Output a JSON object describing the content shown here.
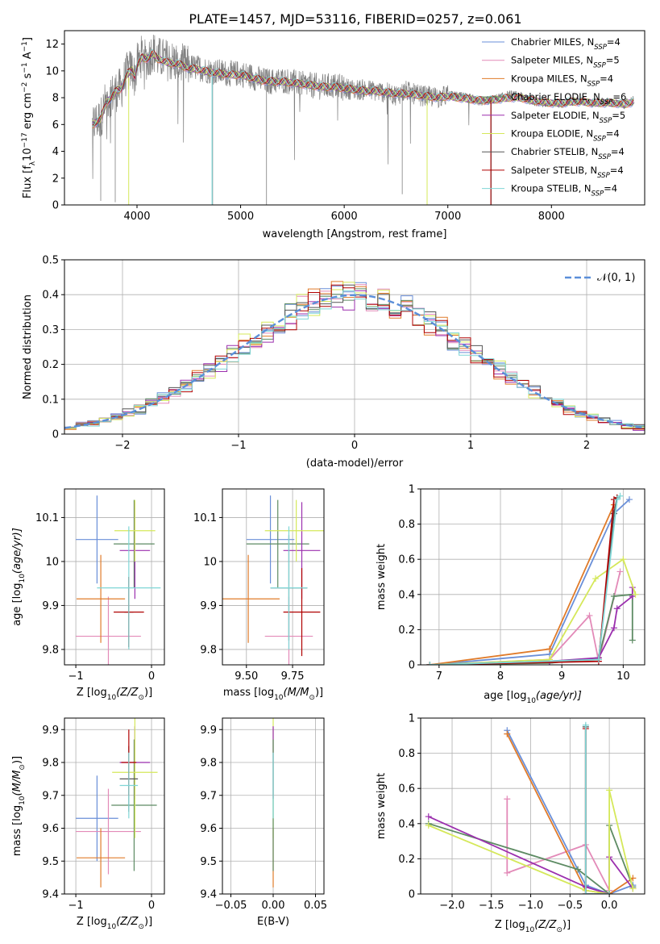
{
  "title": "PLATE=1457, MJD=53116, FIBERID=0257, z=0.061",
  "colors": {
    "Chabrier MILES": "#6a8fd8",
    "Salpeter MILES": "#e38ab8",
    "Kroupa MILES": "#e07b2a",
    "Chabrier ELODIE": "#5d8b63",
    "Salpeter ELODIE": "#9b2fae",
    "Kroupa ELODIE": "#d5e85a",
    "Chabrier STELIB": "#555555",
    "Salpeter STELIB": "#b00000",
    "Kroupa STELIB": "#7fd6d6",
    "data": "#808080"
  },
  "chart_data": [
    {
      "id": "spectrum",
      "type": "line",
      "xlabel": "wavelength [Angstrom, rest frame]",
      "ylabel_parts": [
        "Flux [f",
        "λ",
        "10",
        "−17",
        " erg cm",
        "−2",
        " s",
        "−1",
        " A",
        "−1",
        "]"
      ],
      "xlim": [
        3300,
        8900
      ],
      "ylim": [
        0,
        13
      ],
      "xticks": [
        4000,
        5000,
        6000,
        7000,
        8000
      ],
      "yticks": [
        0,
        2,
        4,
        6,
        8,
        10,
        12
      ],
      "grid": false,
      "legend_position": "top-right",
      "legend": [
        {
          "name": "Chabrier MILES",
          "pre": "Chabrier MILES, N",
          "nssp": "4"
        },
        {
          "name": "Salpeter MILES",
          "pre": "Salpeter MILES, N",
          "nssp": "5"
        },
        {
          "name": "Kroupa MILES",
          "pre": "Kroupa MILES, N",
          "nssp": "4"
        },
        {
          "name": "Chabrier ELODIE",
          "pre": "Chabrier ELODIE, N",
          "nssp": "6"
        },
        {
          "name": "Salpeter ELODIE",
          "pre": "Salpeter ELODIE, N",
          "nssp": "5"
        },
        {
          "name": "Kroupa ELODIE",
          "pre": "Kroupa ELODIE, N",
          "nssp": "4"
        },
        {
          "name": "Chabrier STELIB",
          "pre": "Chabrier STELIB, N",
          "nssp": "4"
        },
        {
          "name": "Salpeter STELIB",
          "pre": "Salpeter STELIB, N",
          "nssp": "4"
        },
        {
          "name": "Kroupa STELIB",
          "pre": "Kroupa STELIB, N",
          "nssp": "4"
        }
      ],
      "legend_sub": "SSP",
      "data_x": [
        3570,
        3650,
        3700,
        3750,
        3800,
        3850,
        3900,
        3950,
        3980,
        4000,
        4050,
        4100,
        4150,
        4200,
        4300,
        4400,
        4500,
        4600,
        4700,
        4800,
        4900,
        5000,
        5100,
        5200,
        5300,
        5400,
        5500,
        5600,
        5700,
        5800,
        5900,
        6000,
        6100,
        6200,
        6300,
        6400,
        6500,
        6600,
        6700,
        6800,
        6900,
        7000,
        7100,
        7200,
        7300,
        7400,
        7500,
        7600,
        7700,
        7800,
        7900,
        8000,
        8100,
        8200,
        8300,
        8400,
        8500,
        8600,
        8700,
        8800
      ],
      "data_y": [
        6.0,
        6.5,
        7.8,
        8.2,
        8.5,
        8.7,
        9.8,
        10.2,
        9.5,
        10.5,
        11.2,
        10.8,
        11.5,
        11.0,
        10.8,
        10.6,
        10.3,
        10.2,
        10.0,
        9.9,
        9.8,
        9.8,
        9.6,
        9.3,
        9.2,
        9.3,
        9.2,
        9.0,
        8.9,
        8.8,
        8.9,
        8.7,
        8.6,
        8.6,
        8.5,
        8.4,
        8.2,
        8.5,
        8.2,
        8.1,
        8.0,
        8.2,
        8.1,
        8.0,
        7.7,
        7.8,
        8.0,
        8.2,
        8.1,
        7.8,
        7.6,
        7.5,
        7.6,
        7.7,
        7.8,
        7.6,
        7.7,
        7.6,
        7.5,
        7.9
      ],
      "model_y": [
        6.0,
        6.4,
        7.6,
        8.0,
        8.5,
        8.7,
        9.7,
        10.1,
        9.6,
        10.4,
        11.0,
        10.9,
        11.3,
        10.9,
        10.6,
        10.5,
        10.2,
        10.1,
        9.9,
        9.8,
        9.7,
        9.7,
        9.5,
        9.3,
        9.2,
        9.2,
        9.1,
        9.0,
        8.9,
        8.8,
        8.8,
        8.7,
        8.6,
        8.5,
        8.5,
        8.4,
        8.3,
        8.3,
        8.2,
        8.1,
        8.0,
        8.1,
        8.0,
        7.9,
        7.8,
        7.8,
        7.9,
        8.0,
        8.0,
        7.8,
        7.7,
        7.6,
        7.6,
        7.7,
        7.7,
        7.6,
        7.6,
        7.6,
        7.5,
        7.7
      ]
    },
    {
      "id": "residuals",
      "type": "histogram",
      "xlabel": "(data-model)/error",
      "ylabel": "Normed distribution",
      "xlim": [
        -2.5,
        2.5
      ],
      "ylim": [
        0,
        0.5
      ],
      "xticks": [
        -2,
        -1,
        0,
        1,
        2
      ],
      "yticks": [
        0.0,
        0.1,
        0.2,
        0.3,
        0.4,
        0.5
      ],
      "grid": true,
      "legend_position": "top-right",
      "normal_label": "𝒩(0, 1)",
      "bin_width": 0.1
    },
    {
      "id": "z-vs-age",
      "type": "errorbar",
      "xlabel_parts": [
        "Z [log",
        "10",
        "(Z/Z",
        "⊙",
        ")]"
      ],
      "ylabel_parts": [
        "age  [log",
        "10",
        "(age/yr)]"
      ],
      "xlim": [
        -1.15,
        0.17
      ],
      "ylim": [
        9.765,
        10.165
      ],
      "xticks": [
        -1,
        0
      ],
      "yticks": [
        9.8,
        9.9,
        10.0,
        10.1
      ],
      "grid": true,
      "points": [
        {
          "series": "Chabrier MILES",
          "x": -0.72,
          "xerr": 0.28,
          "y": 10.05,
          "yerr": 0.1
        },
        {
          "series": "Salpeter MILES",
          "x": -0.57,
          "xerr": 0.43,
          "y": 9.83,
          "yerr": 0.09
        },
        {
          "series": "Kroupa MILES",
          "x": -0.67,
          "xerr": 0.32,
          "y": 9.915,
          "yerr": 0.1
        },
        {
          "series": "Chabrier ELODIE",
          "x": -0.23,
          "xerr": 0.27,
          "y": 10.04,
          "yerr": 0.1
        },
        {
          "series": "Salpeter ELODIE",
          "x": -0.22,
          "xerr": 0.2,
          "y": 10.025,
          "yerr": 0.11
        },
        {
          "series": "Kroupa ELODIE",
          "x": -0.22,
          "xerr": 0.27,
          "y": 10.07,
          "yerr": 0.07
        },
        {
          "series": "Chabrier STELIB",
          "x": -0.3,
          "xerr": 0.06,
          "y": 9.885,
          "yerr": 0.08
        },
        {
          "series": "Salpeter STELIB",
          "x": -0.3,
          "xerr": 0.2,
          "y": 9.885,
          "yerr": 0.08
        },
        {
          "series": "Kroupa STELIB",
          "x": -0.3,
          "xerr": 0.42,
          "y": 9.94,
          "yerr": 0.14
        }
      ]
    },
    {
      "id": "mass-vs-age",
      "type": "errorbar",
      "xlabel_parts": [
        "mass [log",
        "10",
        "(M/M",
        "⊙",
        ")]"
      ],
      "ylabel_parts": [],
      "xlim": [
        9.37,
        9.92
      ],
      "ylim": [
        9.765,
        10.165
      ],
      "xticks": [
        9.5,
        9.75
      ],
      "xtick_labels": [
        "9.50",
        "9.75"
      ],
      "yticks": [
        9.8,
        9.9,
        10.0,
        10.1
      ],
      "grid": true,
      "points": [
        {
          "series": "Chabrier MILES",
          "x": 9.63,
          "xerr": 0.13,
          "y": 10.05,
          "yerr": 0.1
        },
        {
          "series": "Salpeter MILES",
          "x": 9.73,
          "xerr": 0.13,
          "y": 9.83,
          "yerr": 0.09
        },
        {
          "series": "Kroupa MILES",
          "x": 9.51,
          "xerr": 0.17,
          "y": 9.915,
          "yerr": 0.1
        },
        {
          "series": "Chabrier ELODIE",
          "x": 9.67,
          "xerr": 0.17,
          "y": 10.04,
          "yerr": 0.1
        },
        {
          "series": "Salpeter ELODIE",
          "x": 9.8,
          "xerr": 0.1,
          "y": 10.025,
          "yerr": 0.11
        },
        {
          "series": "Kroupa ELODIE",
          "x": 9.77,
          "xerr": 0.17,
          "y": 10.07,
          "yerr": 0.07
        },
        {
          "series": "Chabrier STELIB",
          "x": 9.73,
          "xerr": 0.1,
          "y": 9.94,
          "yerr": 0.12
        },
        {
          "series": "Salpeter STELIB",
          "x": 9.8,
          "xerr": 0.1,
          "y": 9.885,
          "yerr": 0.1
        },
        {
          "series": "Kroupa STELIB",
          "x": 9.73,
          "xerr": 0.1,
          "y": 9.94,
          "yerr": 0.14
        }
      ]
    },
    {
      "id": "age-vs-weight",
      "type": "line",
      "xlabel_parts": [
        "age  [log",
        "10",
        "(age/yr)]"
      ],
      "ylabel": "mass weight",
      "xlim": [
        6.7,
        10.35
      ],
      "ylim": [
        0,
        1.0
      ],
      "xticks": [
        7,
        8,
        9,
        10
      ],
      "yticks": [
        0.0,
        0.2,
        0.4,
        0.6,
        0.8,
        1.0
      ],
      "grid": true,
      "series": [
        {
          "name": "Chabrier MILES",
          "x": [
            6.85,
            8.8,
            9.85,
            10.1
          ],
          "y": [
            0.0,
            0.06,
            0.86,
            0.94
          ]
        },
        {
          "name": "Salpeter MILES",
          "x": [
            6.85,
            8.8,
            9.45,
            9.6,
            9.95
          ],
          "y": [
            0.0,
            0.03,
            0.28,
            0.02,
            0.53
          ]
        },
        {
          "name": "Kroupa MILES",
          "x": [
            6.85,
            8.8,
            9.85
          ],
          "y": [
            0.0,
            0.09,
            0.91
          ]
        },
        {
          "name": "Chabrier ELODIE",
          "x": [
            6.85,
            8.8,
            9.6,
            9.85,
            10.15,
            10.15
          ],
          "y": [
            0.0,
            0.01,
            0.04,
            0.39,
            0.4,
            0.14
          ]
        },
        {
          "name": "Salpeter ELODIE",
          "x": [
            6.85,
            8.8,
            9.6,
            9.85,
            9.9,
            10.15,
            10.15
          ],
          "y": [
            0.0,
            0.02,
            0.04,
            0.21,
            0.32,
            0.39,
            0.44
          ]
        },
        {
          "name": "Kroupa ELODIE",
          "x": [
            6.85,
            8.8,
            9.55,
            10.0,
            10.2
          ],
          "y": [
            0.0,
            0.03,
            0.49,
            0.6,
            0.4
          ]
        },
        {
          "name": "Chabrier STELIB",
          "x": [
            6.85,
            9.6,
            9.85,
            9.9
          ],
          "y": [
            0.0,
            0.03,
            0.86,
            0.95
          ]
        },
        {
          "name": "Salpeter STELIB",
          "x": [
            6.85,
            9.6,
            9.85,
            9.9
          ],
          "y": [
            0.0,
            0.02,
            0.94,
            0.95
          ]
        },
        {
          "name": "Kroupa STELIB",
          "x": [
            6.85,
            9.6,
            9.9,
            9.95
          ],
          "y": [
            0.0,
            0.03,
            0.94,
            0.96
          ]
        }
      ]
    },
    {
      "id": "z-vs-mass",
      "type": "errorbar",
      "xlabel_parts": [
        "Z [log",
        "10",
        "(Z/Z",
        "⊙",
        ")]"
      ],
      "ylabel_parts": [
        "mass [log",
        "10",
        "(M/M",
        "⊙",
        ")]"
      ],
      "xlim": [
        -1.15,
        0.17
      ],
      "ylim": [
        9.4,
        9.935
      ],
      "xticks": [
        -1,
        0
      ],
      "yticks": [
        9.4,
        9.5,
        9.6,
        9.7,
        9.8,
        9.9
      ],
      "grid": true,
      "points": [
        {
          "series": "Chabrier MILES",
          "x": -0.72,
          "xerr": 0.28,
          "y": 9.63,
          "yerr": 0.13
        },
        {
          "series": "Salpeter MILES",
          "x": -0.57,
          "xerr": 0.43,
          "y": 9.59,
          "yerr": 0.13
        },
        {
          "series": "Kroupa MILES",
          "x": -0.67,
          "xerr": 0.32,
          "y": 9.51,
          "yerr": 0.09
        },
        {
          "series": "Chabrier ELODIE",
          "x": -0.23,
          "xerr": 0.3,
          "y": 9.67,
          "yerr": 0.2
        },
        {
          "series": "Salpeter ELODIE",
          "x": -0.22,
          "xerr": 0.2,
          "y": 9.8,
          "yerr": 0.11
        },
        {
          "series": "Kroupa ELODIE",
          "x": -0.22,
          "xerr": 0.3,
          "y": 9.77,
          "yerr": 0.2
        },
        {
          "series": "Chabrier STELIB",
          "x": -0.3,
          "xerr": 0.12,
          "y": 9.75,
          "yerr": 0.1
        },
        {
          "series": "Salpeter STELIB",
          "x": -0.3,
          "xerr": 0.1,
          "y": 9.8,
          "yerr": 0.1
        },
        {
          "series": "Kroupa STELIB",
          "x": -0.3,
          "xerr": 0.12,
          "y": 9.73,
          "yerr": 0.1
        }
      ]
    },
    {
      "id": "ebv-vs-mass",
      "type": "errorbar",
      "xlabel": "E(B-V)",
      "ylabel_parts": [],
      "xlim": [
        -0.06,
        0.06
      ],
      "ylim": [
        9.4,
        9.935
      ],
      "xticks": [
        -0.05,
        0.0,
        0.05
      ],
      "xtick_labels": [
        "−0.05",
        "0.00",
        "0.05"
      ],
      "yticks": [
        9.4,
        9.5,
        9.6,
        9.7,
        9.8,
        9.9
      ],
      "grid": true,
      "points": [
        {
          "series": "Kroupa MILES",
          "x": 0.0,
          "xerr": 0,
          "y": 9.51,
          "yerr": 0.09
        },
        {
          "series": "Kroupa ELODIE",
          "x": 0.0,
          "xerr": 0,
          "y": 9.77,
          "yerr": 0.2
        },
        {
          "series": "Salpeter ELODIE",
          "x": 0.0,
          "xerr": 0,
          "y": 9.8,
          "yerr": 0.11
        },
        {
          "series": "Chabrier ELODIE",
          "x": 0.0,
          "xerr": 0,
          "y": 9.67,
          "yerr": 0.2
        },
        {
          "series": "Kroupa STELIB",
          "x": 0.0,
          "xerr": 0,
          "y": 9.73,
          "yerr": 0.1
        }
      ]
    },
    {
      "id": "z-vs-weight",
      "type": "line",
      "xlabel_parts": [
        "Z [log",
        "10",
        "(Z/Z",
        "⊙",
        ")]"
      ],
      "ylabel": "mass weight",
      "xlim": [
        -2.4,
        0.45
      ],
      "ylim": [
        0,
        1.0
      ],
      "xticks": [
        -2.0,
        -1.5,
        -1.0,
        -0.5,
        0.0
      ],
      "xtick_labels": [
        "−2.0",
        "−1.5",
        "−1.0",
        "−0.5",
        "0.0"
      ],
      "yticks": [
        0.0,
        0.2,
        0.4,
        0.6,
        0.8,
        1.0
      ],
      "grid": true,
      "series": [
        {
          "name": "Chabrier MILES",
          "x": [
            -1.3,
            -0.3,
            0.0,
            0.3
          ],
          "y": [
            0.93,
            0.05,
            0.0,
            0.05
          ]
        },
        {
          "name": "Salpeter MILES",
          "x": [
            -1.3,
            -1.3,
            -0.3,
            0.0
          ],
          "y": [
            0.54,
            0.12,
            0.28,
            0.02
          ]
        },
        {
          "name": "Kroupa MILES",
          "x": [
            -1.3,
            -0.3,
            0.0,
            0.3
          ],
          "y": [
            0.91,
            0.02,
            0.0,
            0.09
          ]
        },
        {
          "name": "Chabrier ELODIE",
          "x": [
            -2.3,
            -0.4,
            0.0,
            0.0,
            0.3
          ],
          "y": [
            0.4,
            0.14,
            0.0,
            0.39,
            0.04
          ]
        },
        {
          "name": "Salpeter ELODIE",
          "x": [
            -2.3,
            -0.3,
            0.0,
            0.0,
            0.3
          ],
          "y": [
            0.44,
            0.04,
            0.0,
            0.21,
            0.03
          ]
        },
        {
          "name": "Kroupa ELODIE",
          "x": [
            -2.3,
            -0.3,
            0.0,
            0.0,
            0.3
          ],
          "y": [
            0.39,
            0.02,
            0.0,
            0.59,
            0.03
          ]
        },
        {
          "name": "Chabrier STELIB",
          "x": [
            -0.3,
            -0.3,
            0.0
          ],
          "y": [
            0.95,
            0.0,
            0.0
          ]
        },
        {
          "name": "Salpeter STELIB",
          "x": [
            -0.3,
            -0.3,
            0.0
          ],
          "y": [
            0.94,
            0.0,
            0.0
          ]
        },
        {
          "name": "Kroupa STELIB",
          "x": [
            -0.3,
            -0.3,
            0.0
          ],
          "y": [
            0.96,
            0.0,
            0.0
          ]
        }
      ]
    }
  ]
}
